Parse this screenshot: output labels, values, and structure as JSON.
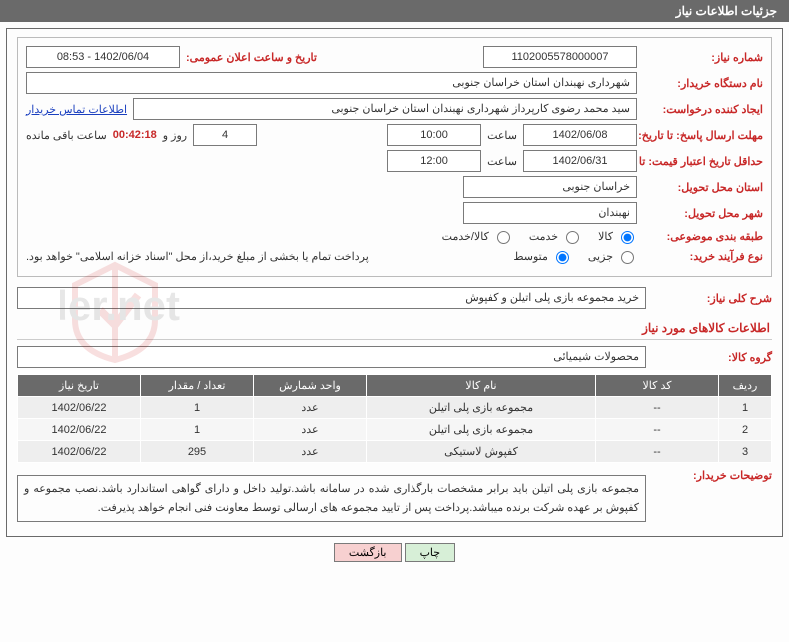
{
  "title": "جزئیات اطلاعات نیاز",
  "labels": {
    "need_no": "شماره نیاز:",
    "ann_date": "تاریخ و ساعت اعلان عمومی:",
    "buyer_org": "نام دستگاه خریدار:",
    "requester": "ایجاد کننده درخواست:",
    "contact_link": "اطلاعات تماس خریدار",
    "resp_deadline_to": "مهلت ارسال پاسخ: تا تاریخ:",
    "hour": "ساعت",
    "days_and": "روز و",
    "remaining": "ساعت باقی مانده",
    "valid_to": "حداقل تاریخ اعتبار قیمت: تا تاریخ:",
    "deliver_prov": "استان محل تحویل:",
    "deliver_city": "شهر محل تحویل:",
    "subject_cat": "طبقه بندی موضوعی:",
    "proc_type": "نوع فرآیند خرید:",
    "payment_note": "پرداخت تمام یا بخشی از مبلغ خرید،از محل \"اسناد خزانه اسلامی\" خواهد بود.",
    "overall": "شرح کلی نیاز:",
    "items_head": "اطلاعات کالاهای مورد نیاز",
    "cat": "گروه کالا:",
    "buyer_notes": "توضیحات خریدار:"
  },
  "values": {
    "need_no": "1102005578000007",
    "ann_date": "1402/06/04 - 08:53",
    "buyer_org": "شهرداری نهبندان استان خراسان جنوبی",
    "requester": "سید محمد رضوی کارپرداز شهرداری نهبندان استان خراسان جنوبی",
    "resp_date": "1402/06/08",
    "resp_time": "10:00",
    "days_left": "4",
    "time_left": "00:42:18",
    "valid_date": "1402/06/31",
    "valid_time": "12:00",
    "province": "خراسان جنوبی",
    "city": "نهبندان",
    "overall": "خرید مجموعه بازی پلی اتیلن و کفپوش",
    "cat": "محصولات شیمیائی",
    "buyer_notes": "مجموعه بازی پلی اتیلن باید برابر مشخصات بارگذاری شده در سامانه باشد.تولید داخل و دارای گواهی استاندارد باشد.نصب مجموعه و کفپوش بر عهده شرکت برنده میباشد.پرداخت پس از تایید مجموعه های ارسالی توسط معاونت فنی انجام خواهد پذیرفت."
  },
  "radios": {
    "subject": [
      {
        "label": "کالا",
        "checked": true
      },
      {
        "label": "خدمت",
        "checked": false
      },
      {
        "label": "کالا/خدمت",
        "checked": false
      }
    ],
    "proc": [
      {
        "label": "جزیی",
        "checked": false
      },
      {
        "label": "متوسط",
        "checked": true
      }
    ]
  },
  "table": {
    "head": [
      "ردیف",
      "کد کالا",
      "نام کالا",
      "واحد شمارش",
      "تعداد / مقدار",
      "تاریخ نیاز"
    ],
    "rows": [
      [
        "1",
        "--",
        "مجموعه بازی پلی اتیلن",
        "عدد",
        "1",
        "1402/06/22"
      ],
      [
        "2",
        "--",
        "مجموعه بازی پلی اتیلن",
        "عدد",
        "1",
        "1402/06/22"
      ],
      [
        "3",
        "--",
        "کفپوش لاستیکی",
        "عدد",
        "295",
        "1402/06/22"
      ]
    ]
  },
  "buttons": {
    "print": "چاپ",
    "back": "بازگشت"
  },
  "style": {
    "brand": "#6a6a6a",
    "label_color": "#c82828",
    "th_bg": "#6a6a6a",
    "td_bg": "#eee",
    "td_alt": "#f6f6f6",
    "btn_print": "#d7efd7",
    "btn_back": "#f7d0d0"
  },
  "col_widths": [
    "40px",
    "110px",
    "",
    "100px",
    "100px",
    "110px"
  ]
}
